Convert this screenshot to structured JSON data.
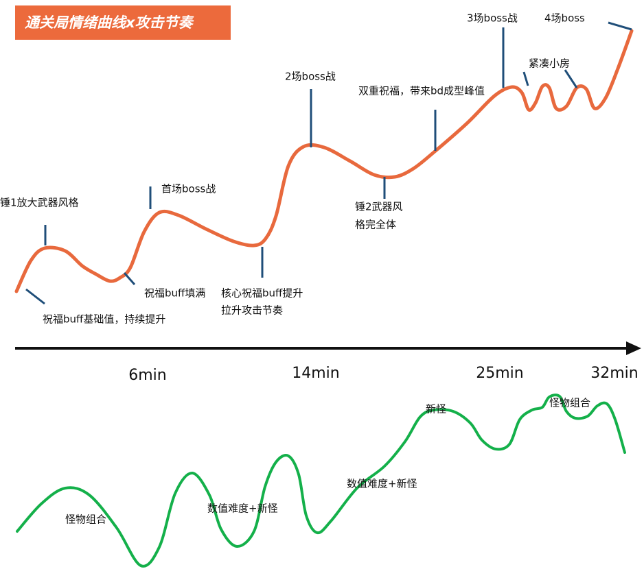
{
  "title": "通关局情绪曲线x攻击节奏",
  "annotations": [
    [
      "锤1放大武器风格"
    ],
    [
      "祝福buff基础值，持续提升"
    ],
    [
      "首场boss战"
    ],
    [
      "祝福buff填满"
    ],
    [
      "核心祝福buff提升",
      "拉升攻击节奏"
    ],
    [
      "2场boss战"
    ],
    [
      "锤2武器风",
      "格完全体"
    ],
    [
      "双重祝福，带来bd成型峰值"
    ],
    [
      "3场boss战"
    ],
    [
      "4场boss"
    ],
    [
      "紧凑小房"
    ]
  ],
  "timeline": [
    "6min",
    "14min",
    "25min",
    "32min"
  ],
  "difficulty_notes": [
    "怪物组合",
    "数值难度+新怪",
    "数值难度+新怪",
    "新怪",
    "怪物组合"
  ]
}
